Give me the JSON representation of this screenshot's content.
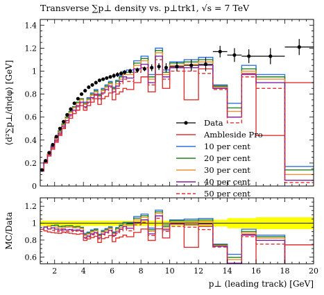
{
  "chart_data": [
    {
      "type": "line",
      "title": "Transverse ∑p⊥ density vs. p⊥trk1, √s = 7 TeV",
      "ylabel": "⟨d²∑p⊥/dηdφ⟩ [GeV]",
      "xlim": [
        1,
        20
      ],
      "ylim": [
        0,
        1.45
      ],
      "yticks": [
        "0",
        "0.2",
        "0.4",
        "0.6",
        "0.8",
        "1",
        "1.2",
        "1.4"
      ],
      "legend_position": "lower-center",
      "bin_edges": [
        1.0,
        1.25,
        1.5,
        1.75,
        2.0,
        2.25,
        2.5,
        2.75,
        3.0,
        3.25,
        3.5,
        3.75,
        4.0,
        4.25,
        4.5,
        4.75,
        5.0,
        5.25,
        5.5,
        5.75,
        6.0,
        6.25,
        6.5,
        6.75,
        7.0,
        7.5,
        8.0,
        8.5,
        9.0,
        9.5,
        10.0,
        11.0,
        12.0,
        13.0,
        14.0,
        15.0,
        16.0,
        18.0,
        20.0
      ],
      "data_points": {
        "name": "Data",
        "x": [
          1.12,
          1.37,
          1.62,
          1.87,
          2.12,
          2.37,
          2.62,
          2.87,
          3.12,
          3.37,
          3.62,
          3.87,
          4.12,
          4.37,
          4.62,
          4.87,
          5.12,
          5.37,
          5.62,
          5.87,
          6.12,
          6.37,
          6.62,
          6.87,
          7.25,
          7.75,
          8.25,
          8.75,
          9.25,
          9.75,
          10.5,
          11.5,
          12.5,
          13.5,
          14.5,
          15.5,
          17.0,
          19.0
        ],
        "y": [
          0.14,
          0.22,
          0.29,
          0.36,
          0.43,
          0.5,
          0.56,
          0.62,
          0.67,
          0.72,
          0.76,
          0.8,
          0.83,
          0.86,
          0.88,
          0.9,
          0.92,
          0.93,
          0.94,
          0.95,
          0.96,
          0.97,
          0.98,
          0.99,
          1.0,
          1.01,
          1.02,
          1.03,
          1.04,
          1.03,
          1.04,
          1.05,
          1.06,
          1.17,
          1.14,
          1.13,
          1.13,
          1.21
        ],
        "yerr": [
          0.01,
          0.01,
          0.01,
          0.01,
          0.01,
          0.01,
          0.01,
          0.01,
          0.01,
          0.01,
          0.01,
          0.01,
          0.01,
          0.01,
          0.01,
          0.01,
          0.01,
          0.01,
          0.01,
          0.01,
          0.02,
          0.02,
          0.02,
          0.02,
          0.02,
          0.02,
          0.02,
          0.03,
          0.03,
          0.04,
          0.04,
          0.05,
          0.06,
          0.05,
          0.06,
          0.06,
          0.07,
          0.07
        ],
        "color": "#000000"
      },
      "series": [
        {
          "name": "Ambleside Pro",
          "color": "#e03030",
          "dash": false,
          "values": [
            0.13,
            0.2,
            0.26,
            0.32,
            0.38,
            0.44,
            0.5,
            0.55,
            0.59,
            0.63,
            0.66,
            0.7,
            0.66,
            0.7,
            0.73,
            0.76,
            0.71,
            0.76,
            0.78,
            0.81,
            0.75,
            0.8,
            0.82,
            0.85,
            0.84,
            0.9,
            0.95,
            0.82,
            0.97,
            0.85,
            1.03,
            0.75,
            1.02,
            0.87,
            0.6,
            0.98,
            0.44,
            0.9
          ]
        },
        {
          "name": "10 per cent",
          "color": "#3070e0",
          "dash": false,
          "values": [
            0.13,
            0.21,
            0.28,
            0.35,
            0.42,
            0.48,
            0.54,
            0.6,
            0.65,
            0.69,
            0.73,
            0.76,
            0.73,
            0.77,
            0.81,
            0.84,
            0.8,
            0.85,
            0.88,
            0.91,
            0.86,
            0.92,
            0.96,
            1.0,
            1.01,
            1.09,
            1.13,
            0.97,
            1.2,
            1.01,
            1.08,
            1.1,
            1.12,
            0.88,
            0.72,
            1.05,
            0.97,
            0.17
          ]
        },
        {
          "name": "20 per cent",
          "color": "#208020",
          "dash": false,
          "values": [
            0.13,
            0.21,
            0.28,
            0.35,
            0.42,
            0.48,
            0.54,
            0.6,
            0.65,
            0.69,
            0.73,
            0.76,
            0.72,
            0.76,
            0.8,
            0.83,
            0.79,
            0.84,
            0.87,
            0.9,
            0.85,
            0.91,
            0.95,
            0.99,
            0.99,
            1.07,
            1.11,
            0.95,
            1.18,
            0.99,
            1.07,
            1.08,
            1.1,
            0.87,
            0.68,
            1.02,
            0.95,
            0.14
          ]
        },
        {
          "name": "30 per cent",
          "color": "#f09030",
          "dash": false,
          "values": [
            0.13,
            0.21,
            0.28,
            0.34,
            0.41,
            0.47,
            0.53,
            0.59,
            0.64,
            0.68,
            0.72,
            0.75,
            0.71,
            0.75,
            0.79,
            0.82,
            0.78,
            0.83,
            0.86,
            0.89,
            0.84,
            0.89,
            0.93,
            0.97,
            0.97,
            1.05,
            1.09,
            0.93,
            1.16,
            0.97,
            1.05,
            1.06,
            1.08,
            0.86,
            0.65,
            1.0,
            0.93,
            0.1
          ]
        },
        {
          "name": "40 per cent",
          "color": "#8020a0",
          "dash": false,
          "values": [
            0.13,
            0.21,
            0.27,
            0.34,
            0.4,
            0.46,
            0.52,
            0.57,
            0.62,
            0.66,
            0.7,
            0.73,
            0.69,
            0.73,
            0.77,
            0.8,
            0.76,
            0.81,
            0.84,
            0.87,
            0.82,
            0.87,
            0.91,
            0.95,
            0.94,
            1.02,
            1.06,
            0.9,
            1.13,
            0.95,
            1.03,
            1.03,
            1.05,
            0.85,
            0.6,
            0.97,
            0.9,
            0.05
          ]
        },
        {
          "name": "50 per cent",
          "color": "#e03030",
          "dash": true,
          "values": [
            0.13,
            0.2,
            0.27,
            0.33,
            0.39,
            0.45,
            0.51,
            0.56,
            0.61,
            0.65,
            0.69,
            0.72,
            0.68,
            0.72,
            0.76,
            0.79,
            0.75,
            0.8,
            0.83,
            0.86,
            0.81,
            0.85,
            0.89,
            0.93,
            0.91,
            0.99,
            1.03,
            0.88,
            1.1,
            0.93,
            1.0,
            1.0,
            0.98,
            0.84,
            0.55,
            0.95,
            0.85,
            0.03
          ]
        }
      ]
    },
    {
      "type": "line",
      "ylabel": "MC/Data",
      "xlabel": "p⊥ (leading track) [GeV]",
      "xlim": [
        1,
        20
      ],
      "ylim": [
        0.52,
        1.3
      ],
      "yticks": [
        "0.6",
        "0.8",
        "1",
        "1.2"
      ],
      "xticks": [
        "2",
        "4",
        "6",
        "8",
        "10",
        "12",
        "14",
        "16",
        "18",
        "20"
      ],
      "band": {
        "color": "#ffff00",
        "x": [
          1,
          12,
          14,
          16,
          20
        ],
        "lo": [
          0.97,
          0.96,
          0.94,
          0.93,
          0.93
        ],
        "hi": [
          1.03,
          1.04,
          1.06,
          1.07,
          1.07
        ]
      }
    }
  ]
}
